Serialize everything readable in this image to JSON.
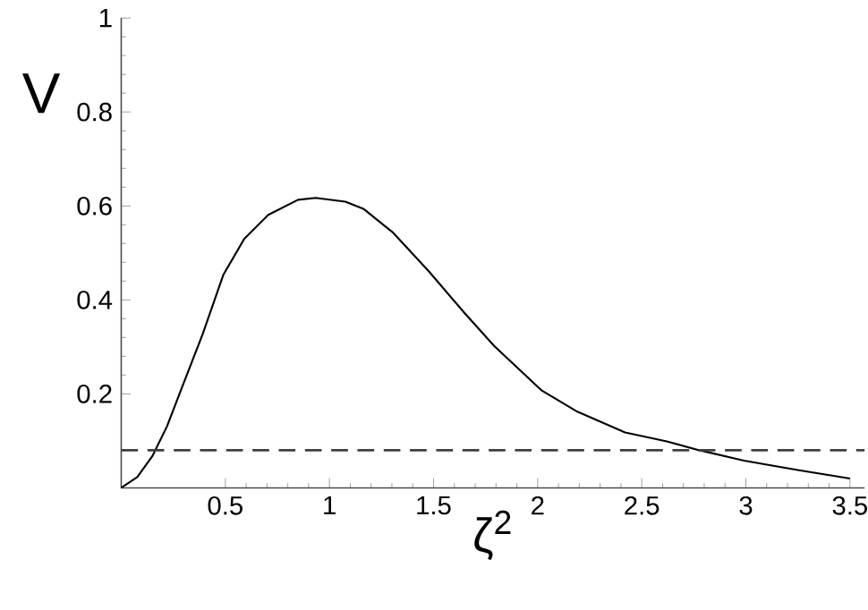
{
  "chart_data": {
    "type": "line",
    "xlabel": "ζ$^{2}$",
    "ylabel": "V",
    "xlim": [
      0,
      3.57
    ],
    "ylim": [
      0,
      1
    ],
    "xticks": [
      0.5,
      1,
      1.5,
      2,
      2.5,
      3,
      3.5
    ],
    "yticks": [
      0.2,
      0.4,
      0.6,
      0.8,
      1
    ],
    "x": [
      0,
      0.077,
      0.149,
      0.22,
      0.291,
      0.391,
      0.491,
      0.591,
      0.706,
      0.849,
      0.934,
      1.077,
      1.163,
      1.306,
      1.477,
      1.649,
      1.791,
      2.02,
      2.191,
      2.42,
      2.62,
      2.777,
      2.991,
      3.249,
      3.5
    ],
    "series": [
      {
        "color": "#000000",
        "values": [
          0,
          0.023,
          0.067,
          0.131,
          0.213,
          0.327,
          0.454,
          0.53,
          0.581,
          0.613,
          0.617,
          0.609,
          0.594,
          0.543,
          0.461,
          0.372,
          0.302,
          0.207,
          0.162,
          0.118,
          0.099,
          0.08,
          0.058,
          0.038,
          0.02
        ]
      }
    ],
    "marker": "none",
    "line_style": "solid",
    "ref_lines": [
      {
        "axis": "y",
        "value": 0.08,
        "color": "#404040",
        "line_style": "dashed"
      }
    ]
  }
}
